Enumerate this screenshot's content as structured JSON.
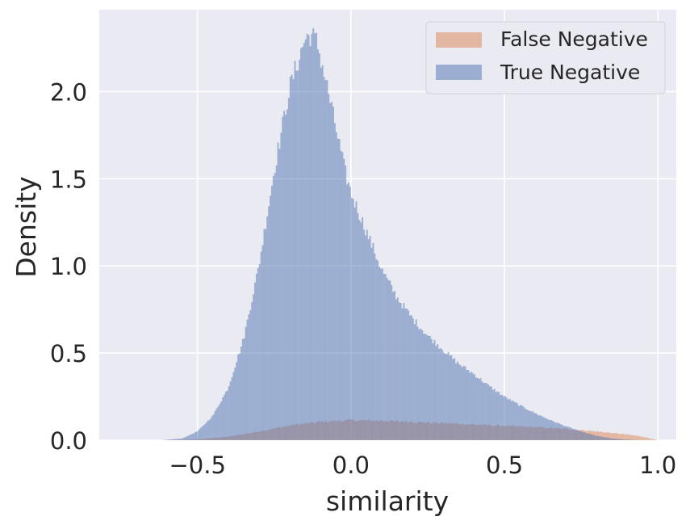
{
  "chart_data": {
    "type": "histogram",
    "xlabel": "similarity",
    "ylabel": "Density",
    "xlim": [
      -0.82,
      1.06
    ],
    "ylim": [
      0,
      2.47
    ],
    "xticks": [
      -0.5,
      0.0,
      0.5,
      1.0
    ],
    "xtick_labels": [
      "−0.5",
      "0.0",
      "0.5",
      "1.0"
    ],
    "yticks": [
      0.0,
      0.5,
      1.0,
      1.5,
      2.0
    ],
    "ytick_labels": [
      "0.0",
      "0.5",
      "1.0",
      "1.5",
      "2.0"
    ],
    "grid": true,
    "legend_position": "top-right",
    "bin_width": 0.005,
    "colors": {
      "background": "#eaeaf2",
      "grid": "#ffffff"
    },
    "series": [
      {
        "name": "False Negative",
        "color": "#dd8452",
        "opacity": 0.5,
        "points": [
          [
            -0.6,
            0.0
          ],
          [
            -0.5,
            0.005
          ],
          [
            -0.4,
            0.02
          ],
          [
            -0.3,
            0.05
          ],
          [
            -0.2,
            0.085
          ],
          [
            -0.1,
            0.105
          ],
          [
            0.0,
            0.115
          ],
          [
            0.1,
            0.112
          ],
          [
            0.2,
            0.105
          ],
          [
            0.3,
            0.098
          ],
          [
            0.4,
            0.09
          ],
          [
            0.5,
            0.082
          ],
          [
            0.6,
            0.075
          ],
          [
            0.7,
            0.065
          ],
          [
            0.8,
            0.05
          ],
          [
            0.9,
            0.033
          ],
          [
            0.95,
            0.02
          ],
          [
            1.0,
            0.0
          ]
        ]
      },
      {
        "name": "True Negative",
        "color": "#4c72b0",
        "opacity": 0.5,
        "points": [
          [
            -0.62,
            0.0
          ],
          [
            -0.55,
            0.01
          ],
          [
            -0.5,
            0.05
          ],
          [
            -0.45,
            0.14
          ],
          [
            -0.4,
            0.3
          ],
          [
            -0.35,
            0.58
          ],
          [
            -0.3,
            1.0
          ],
          [
            -0.25,
            1.55
          ],
          [
            -0.2,
            2.02
          ],
          [
            -0.15,
            2.3
          ],
          [
            -0.13,
            2.33
          ],
          [
            -0.11,
            2.28
          ],
          [
            -0.08,
            2.05
          ],
          [
            -0.05,
            1.8
          ],
          [
            -0.02,
            1.55
          ],
          [
            0.0,
            1.42
          ],
          [
            0.05,
            1.2
          ],
          [
            0.1,
            0.98
          ],
          [
            0.15,
            0.82
          ],
          [
            0.2,
            0.7
          ],
          [
            0.25,
            0.6
          ],
          [
            0.3,
            0.52
          ],
          [
            0.35,
            0.44
          ],
          [
            0.4,
            0.38
          ],
          [
            0.45,
            0.31
          ],
          [
            0.5,
            0.25
          ],
          [
            0.55,
            0.2
          ],
          [
            0.6,
            0.155
          ],
          [
            0.65,
            0.115
          ],
          [
            0.7,
            0.08
          ],
          [
            0.75,
            0.05
          ],
          [
            0.8,
            0.025
          ],
          [
            0.85,
            0.01
          ],
          [
            0.9,
            0.003
          ],
          [
            0.95,
            0.0
          ]
        ]
      }
    ]
  }
}
